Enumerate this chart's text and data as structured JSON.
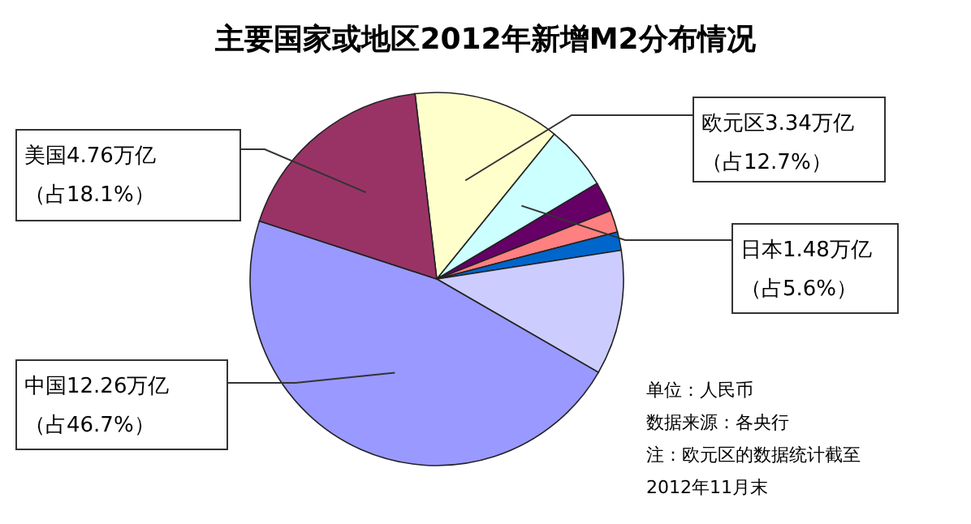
{
  "chart_data": {
    "type": "pie",
    "title": "主要国家或地区2012年新增M2分布情况",
    "categories": [
      "欧元区3.34万亿",
      "日本1.48万亿",
      null,
      null,
      null,
      null,
      "中国12.26万亿",
      "美国4.76万亿"
    ],
    "values": [
      12.7,
      5.6,
      2.6,
      1.9,
      1.6,
      10.8,
      46.7,
      18.1
    ],
    "value_labels": [
      "（占12.7%）",
      "（占5.6%）",
      null,
      null,
      null,
      null,
      "（占46.7%）",
      "（占18.1%）"
    ],
    "colors": [
      "#ffffcc",
      "#ccffff",
      "#660066",
      "#ff8080",
      "#0066cc",
      "#ccccff",
      "#9999ff",
      "#993366"
    ],
    "annotations": [
      "单位：人民币",
      "数据来源：各央行",
      "注：欧元区的数据统计截至",
      "2012年11月末"
    ]
  }
}
